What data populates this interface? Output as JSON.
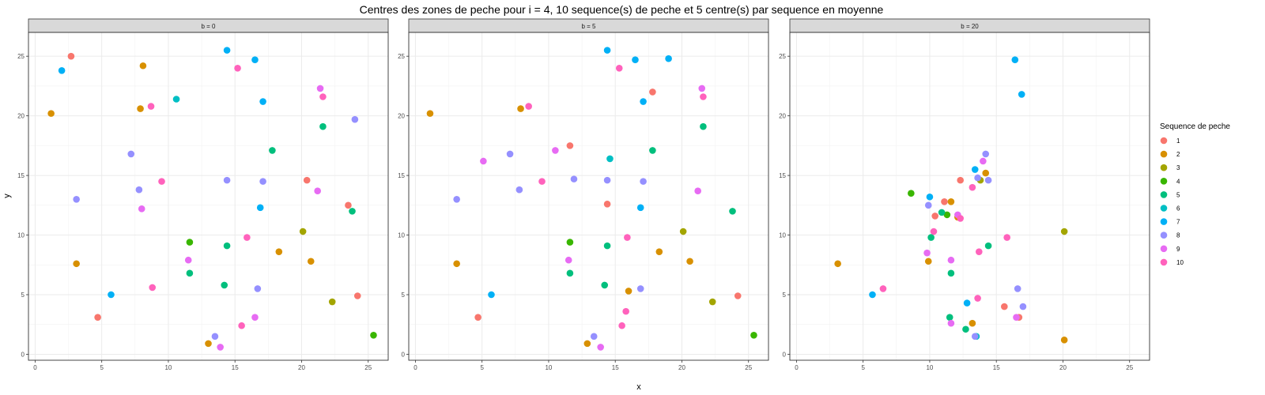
{
  "title": "Centres des zones de peche pour i = 4, 10 sequence(s) de peche et 5 centre(s) par sequence en moyenne",
  "legend": {
    "title": "Sequence de peche",
    "items": [
      {
        "label": "1",
        "color": "#F8766D"
      },
      {
        "label": "2",
        "color": "#D89000"
      },
      {
        "label": "3",
        "color": "#A3A500"
      },
      {
        "label": "4",
        "color": "#39B600"
      },
      {
        "label": "5",
        "color": "#00BF7D"
      },
      {
        "label": "6",
        "color": "#00BFC4"
      },
      {
        "label": "7",
        "color": "#00B0F6"
      },
      {
        "label": "8",
        "color": "#9590FF"
      },
      {
        "label": "9",
        "color": "#E76BF3"
      },
      {
        "label": "10",
        "color": "#FF62BC"
      }
    ]
  },
  "chart_data": {
    "type": "scatter",
    "title": "Centres des zones de peche pour i = 4, 10 sequence(s) de peche et 5 centre(s) par sequence en moyenne",
    "xlabel": "x",
    "ylabel": "y",
    "xlim": [
      -0.5,
      26.5
    ],
    "ylim": [
      -0.5,
      27
    ],
    "xticks": [
      0,
      5,
      10,
      15,
      20,
      25
    ],
    "yticks": [
      0,
      5,
      10,
      15,
      20,
      25
    ],
    "grid": true,
    "legend_position": "right",
    "facets": [
      {
        "label": "b = 0",
        "points": [
          {
            "seq": 1,
            "x": 2.7,
            "y": 25.0
          },
          {
            "seq": 1,
            "x": 20.4,
            "y": 14.6
          },
          {
            "seq": 1,
            "x": 23.5,
            "y": 12.5
          },
          {
            "seq": 1,
            "x": 4.7,
            "y": 3.1
          },
          {
            "seq": 1,
            "x": 24.2,
            "y": 4.9
          },
          {
            "seq": 2,
            "x": 8.1,
            "y": 24.2
          },
          {
            "seq": 2,
            "x": 1.2,
            "y": 20.2
          },
          {
            "seq": 2,
            "x": 7.9,
            "y": 20.6
          },
          {
            "seq": 2,
            "x": 3.1,
            "y": 7.6
          },
          {
            "seq": 2,
            "x": 18.3,
            "y": 8.6
          },
          {
            "seq": 2,
            "x": 20.7,
            "y": 7.8
          },
          {
            "seq": 2,
            "x": 13.0,
            "y": 0.9
          },
          {
            "seq": 3,
            "x": 20.1,
            "y": 10.3
          },
          {
            "seq": 3,
            "x": 22.3,
            "y": 4.4
          },
          {
            "seq": 4,
            "x": 11.6,
            "y": 9.4
          },
          {
            "seq": 4,
            "x": 25.4,
            "y": 1.6
          },
          {
            "seq": 5,
            "x": 21.6,
            "y": 19.1
          },
          {
            "seq": 5,
            "x": 17.8,
            "y": 17.1
          },
          {
            "seq": 5,
            "x": 23.8,
            "y": 12.0
          },
          {
            "seq": 5,
            "x": 14.4,
            "y": 9.1
          },
          {
            "seq": 5,
            "x": 11.6,
            "y": 6.8
          },
          {
            "seq": 5,
            "x": 14.2,
            "y": 5.8
          },
          {
            "seq": 6,
            "x": 10.6,
            "y": 21.4
          },
          {
            "seq": 7,
            "x": 2.0,
            "y": 23.8
          },
          {
            "seq": 7,
            "x": 14.4,
            "y": 25.5
          },
          {
            "seq": 7,
            "x": 16.5,
            "y": 24.7
          },
          {
            "seq": 7,
            "x": 17.1,
            "y": 21.2
          },
          {
            "seq": 7,
            "x": 16.9,
            "y": 12.3
          },
          {
            "seq": 7,
            "x": 5.7,
            "y": 5.0
          },
          {
            "seq": 8,
            "x": 24.0,
            "y": 19.7
          },
          {
            "seq": 8,
            "x": 7.2,
            "y": 16.8
          },
          {
            "seq": 8,
            "x": 14.4,
            "y": 14.6
          },
          {
            "seq": 8,
            "x": 17.1,
            "y": 14.5
          },
          {
            "seq": 8,
            "x": 7.8,
            "y": 13.8
          },
          {
            "seq": 8,
            "x": 3.1,
            "y": 13.0
          },
          {
            "seq": 8,
            "x": 16.7,
            "y": 5.5
          },
          {
            "seq": 8,
            "x": 13.5,
            "y": 1.5
          },
          {
            "seq": 9,
            "x": 21.4,
            "y": 22.3
          },
          {
            "seq": 9,
            "x": 21.2,
            "y": 13.7
          },
          {
            "seq": 9,
            "x": 8.0,
            "y": 12.2
          },
          {
            "seq": 9,
            "x": 11.5,
            "y": 7.9
          },
          {
            "seq": 9,
            "x": 16.5,
            "y": 3.1
          },
          {
            "seq": 9,
            "x": 13.9,
            "y": 0.6
          },
          {
            "seq": 10,
            "x": 15.2,
            "y": 24.0
          },
          {
            "seq": 10,
            "x": 8.7,
            "y": 20.8
          },
          {
            "seq": 10,
            "x": 21.6,
            "y": 21.6
          },
          {
            "seq": 10,
            "x": 9.5,
            "y": 14.5
          },
          {
            "seq": 10,
            "x": 15.9,
            "y": 9.8
          },
          {
            "seq": 10,
            "x": 8.8,
            "y": 5.6
          },
          {
            "seq": 10,
            "x": 15.5,
            "y": 2.4
          }
        ]
      },
      {
        "label": "b = 5",
        "points": [
          {
            "seq": 1,
            "x": 17.8,
            "y": 22.0
          },
          {
            "seq": 1,
            "x": 11.6,
            "y": 17.5
          },
          {
            "seq": 1,
            "x": 14.4,
            "y": 12.6
          },
          {
            "seq": 1,
            "x": 4.7,
            "y": 3.1
          },
          {
            "seq": 1,
            "x": 24.2,
            "y": 4.9
          },
          {
            "seq": 2,
            "x": 1.1,
            "y": 20.2
          },
          {
            "seq": 2,
            "x": 7.9,
            "y": 20.6
          },
          {
            "seq": 2,
            "x": 3.1,
            "y": 7.6
          },
          {
            "seq": 2,
            "x": 18.3,
            "y": 8.6
          },
          {
            "seq": 2,
            "x": 20.6,
            "y": 7.8
          },
          {
            "seq": 2,
            "x": 16.0,
            "y": 5.3
          },
          {
            "seq": 2,
            "x": 12.9,
            "y": 0.9
          },
          {
            "seq": 3,
            "x": 20.1,
            "y": 10.3
          },
          {
            "seq": 3,
            "x": 22.3,
            "y": 4.4
          },
          {
            "seq": 4,
            "x": 11.6,
            "y": 9.4
          },
          {
            "seq": 4,
            "x": 25.4,
            "y": 1.6
          },
          {
            "seq": 5,
            "x": 21.6,
            "y": 19.1
          },
          {
            "seq": 5,
            "x": 17.8,
            "y": 17.1
          },
          {
            "seq": 5,
            "x": 23.8,
            "y": 12.0
          },
          {
            "seq": 5,
            "x": 14.4,
            "y": 9.1
          },
          {
            "seq": 5,
            "x": 11.6,
            "y": 6.8
          },
          {
            "seq": 5,
            "x": 14.2,
            "y": 5.8
          },
          {
            "seq": 6,
            "x": 14.6,
            "y": 16.4
          },
          {
            "seq": 7,
            "x": 14.4,
            "y": 25.5
          },
          {
            "seq": 7,
            "x": 16.5,
            "y": 24.7
          },
          {
            "seq": 7,
            "x": 19.0,
            "y": 24.8
          },
          {
            "seq": 7,
            "x": 17.1,
            "y": 21.2
          },
          {
            "seq": 7,
            "x": 16.9,
            "y": 12.3
          },
          {
            "seq": 7,
            "x": 5.7,
            "y": 5.0
          },
          {
            "seq": 8,
            "x": 7.1,
            "y": 16.8
          },
          {
            "seq": 8,
            "x": 11.9,
            "y": 14.7
          },
          {
            "seq": 8,
            "x": 14.4,
            "y": 14.6
          },
          {
            "seq": 8,
            "x": 17.1,
            "y": 14.5
          },
          {
            "seq": 8,
            "x": 7.8,
            "y": 13.8
          },
          {
            "seq": 8,
            "x": 3.1,
            "y": 13.0
          },
          {
            "seq": 8,
            "x": 16.9,
            "y": 5.5
          },
          {
            "seq": 8,
            "x": 13.4,
            "y": 1.5
          },
          {
            "seq": 9,
            "x": 21.5,
            "y": 22.3
          },
          {
            "seq": 9,
            "x": 10.5,
            "y": 17.1
          },
          {
            "seq": 9,
            "x": 5.1,
            "y": 16.2
          },
          {
            "seq": 9,
            "x": 21.2,
            "y": 13.7
          },
          {
            "seq": 9,
            "x": 11.5,
            "y": 7.9
          },
          {
            "seq": 9,
            "x": 13.9,
            "y": 0.6
          },
          {
            "seq": 10,
            "x": 15.3,
            "y": 24.0
          },
          {
            "seq": 10,
            "x": 8.5,
            "y": 20.8
          },
          {
            "seq": 10,
            "x": 21.6,
            "y": 21.6
          },
          {
            "seq": 10,
            "x": 9.5,
            "y": 14.5
          },
          {
            "seq": 10,
            "x": 15.9,
            "y": 9.8
          },
          {
            "seq": 10,
            "x": 15.8,
            "y": 3.6
          },
          {
            "seq": 10,
            "x": 15.5,
            "y": 2.4
          }
        ]
      },
      {
        "label": "b = 20",
        "points": [
          {
            "seq": 1,
            "x": 12.3,
            "y": 14.6
          },
          {
            "seq": 1,
            "x": 11.1,
            "y": 12.8
          },
          {
            "seq": 1,
            "x": 10.4,
            "y": 11.6
          },
          {
            "seq": 1,
            "x": 15.6,
            "y": 4.0
          },
          {
            "seq": 1,
            "x": 16.7,
            "y": 3.1
          },
          {
            "seq": 2,
            "x": 14.2,
            "y": 15.2
          },
          {
            "seq": 2,
            "x": 11.6,
            "y": 12.8
          },
          {
            "seq": 2,
            "x": 12.1,
            "y": 11.5
          },
          {
            "seq": 2,
            "x": 3.1,
            "y": 7.6
          },
          {
            "seq": 2,
            "x": 9.9,
            "y": 7.8
          },
          {
            "seq": 2,
            "x": 13.2,
            "y": 2.6
          },
          {
            "seq": 2,
            "x": 20.1,
            "y": 1.2
          },
          {
            "seq": 3,
            "x": 13.8,
            "y": 14.6
          },
          {
            "seq": 3,
            "x": 20.1,
            "y": 10.3
          },
          {
            "seq": 4,
            "x": 8.6,
            "y": 13.5
          },
          {
            "seq": 4,
            "x": 11.3,
            "y": 11.7
          },
          {
            "seq": 5,
            "x": 10.9,
            "y": 11.9
          },
          {
            "seq": 5,
            "x": 10.1,
            "y": 9.8
          },
          {
            "seq": 5,
            "x": 14.4,
            "y": 9.1
          },
          {
            "seq": 5,
            "x": 11.6,
            "y": 6.8
          },
          {
            "seq": 5,
            "x": 11.5,
            "y": 3.1
          },
          {
            "seq": 5,
            "x": 12.7,
            "y": 2.1
          },
          {
            "seq": 6,
            "x": 13.5,
            "y": 1.5
          },
          {
            "seq": 7,
            "x": 16.4,
            "y": 24.7
          },
          {
            "seq": 7,
            "x": 16.9,
            "y": 21.8
          },
          {
            "seq": 7,
            "x": 13.4,
            "y": 15.5
          },
          {
            "seq": 7,
            "x": 10.0,
            "y": 13.2
          },
          {
            "seq": 7,
            "x": 12.8,
            "y": 4.3
          },
          {
            "seq": 7,
            "x": 5.7,
            "y": 5.0
          },
          {
            "seq": 8,
            "x": 14.2,
            "y": 16.8
          },
          {
            "seq": 8,
            "x": 13.6,
            "y": 14.8
          },
          {
            "seq": 8,
            "x": 14.4,
            "y": 14.6
          },
          {
            "seq": 8,
            "x": 9.9,
            "y": 12.5
          },
          {
            "seq": 8,
            "x": 16.6,
            "y": 5.5
          },
          {
            "seq": 8,
            "x": 17.0,
            "y": 4.0
          },
          {
            "seq": 8,
            "x": 13.4,
            "y": 1.5
          },
          {
            "seq": 9,
            "x": 14.0,
            "y": 16.2
          },
          {
            "seq": 9,
            "x": 12.1,
            "y": 11.7
          },
          {
            "seq": 9,
            "x": 9.8,
            "y": 8.5
          },
          {
            "seq": 9,
            "x": 11.6,
            "y": 7.9
          },
          {
            "seq": 9,
            "x": 16.5,
            "y": 3.1
          },
          {
            "seq": 9,
            "x": 11.6,
            "y": 2.6
          },
          {
            "seq": 10,
            "x": 13.2,
            "y": 14.0
          },
          {
            "seq": 10,
            "x": 12.3,
            "y": 11.4
          },
          {
            "seq": 10,
            "x": 10.3,
            "y": 10.3
          },
          {
            "seq": 10,
            "x": 15.8,
            "y": 9.8
          },
          {
            "seq": 10,
            "x": 13.7,
            "y": 8.6
          },
          {
            "seq": 10,
            "x": 6.5,
            "y": 5.5
          },
          {
            "seq": 10,
            "x": 13.6,
            "y": 4.7
          }
        ]
      }
    ]
  }
}
